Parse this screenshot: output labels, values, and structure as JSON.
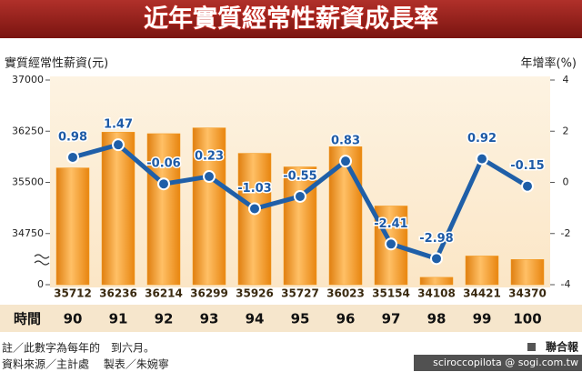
{
  "chart_data": {
    "type": "combo",
    "title": "近年實質經常性薪資成長率",
    "ylabel": "實質經常性薪資(元)",
    "y2label": "年增率(%)",
    "xlabel": "時間",
    "categories": [
      "90",
      "91",
      "92",
      "93",
      "94",
      "95",
      "96",
      "97",
      "98",
      "99",
      "100"
    ],
    "series": [
      {
        "type": "bar",
        "color": "#f39a1e",
        "values": [
          35712,
          36236,
          36214,
          36299,
          35926,
          35727,
          36023,
          35154,
          34108,
          34421,
          34370
        ]
      },
      {
        "type": "line",
        "color": "#1f5fa8",
        "axis": "y2",
        "values": [
          0.98,
          1.47,
          -0.06,
          0.23,
          -1.03,
          -0.55,
          0.83,
          -2.41,
          -2.98,
          0.92,
          -0.15
        ]
      }
    ],
    "ylim": [
      0,
      37000
    ],
    "yticks": [
      0,
      34750,
      35500,
      36250,
      37000
    ],
    "axis_break": true,
    "y2lim": [
      -4,
      4
    ],
    "y2ticks": [
      -4,
      -2,
      0,
      2,
      4
    ]
  },
  "footer": {
    "notes": [
      "註／此數字為每年的　到六月。",
      "資料來源／主計處　 製表／朱婉寧"
    ],
    "brand": "聯合報",
    "watermark": "sciroccopilota @ sogi.com.tw"
  }
}
